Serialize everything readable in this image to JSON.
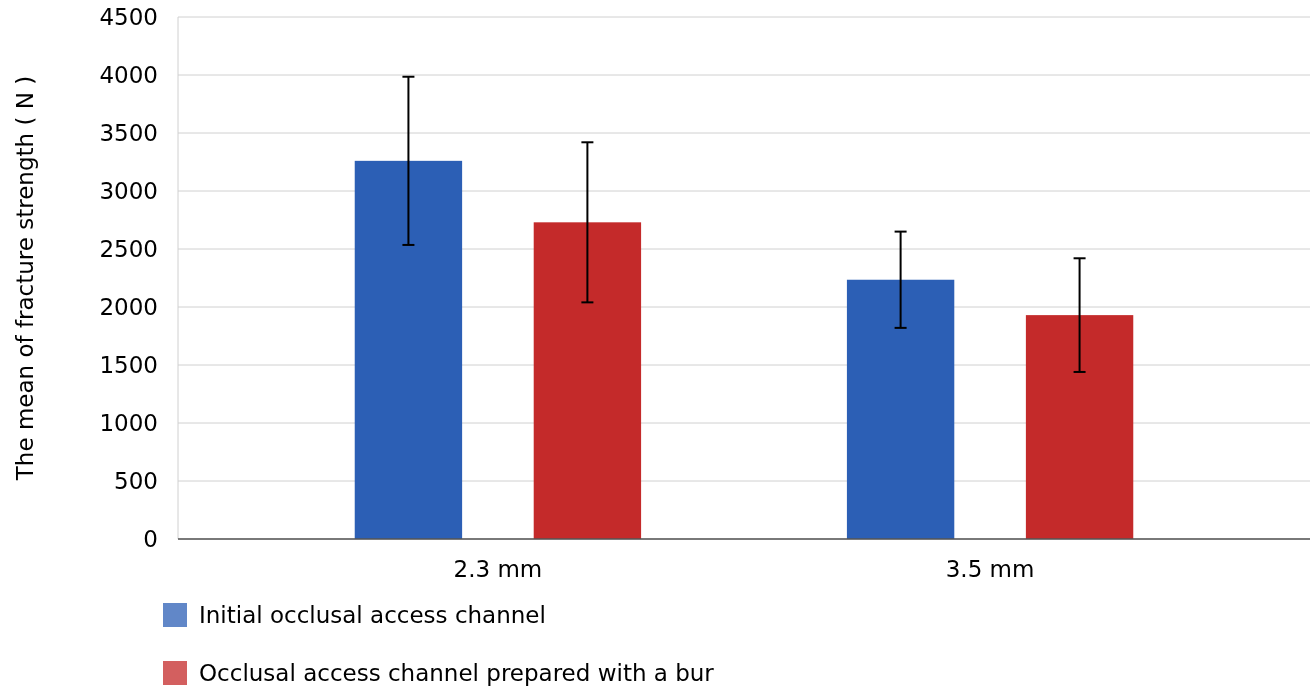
{
  "chart_data": {
    "type": "bar",
    "ylabel": "The mean of fracture strength ( N )",
    "categories": [
      "2.3 mm",
      "3.5 mm"
    ],
    "series": [
      {
        "name": "Initial occlusal access channel",
        "color": "#2c5fb5",
        "values": [
          3260,
          2235
        ],
        "errors": [
          725,
          415
        ]
      },
      {
        "name": "Occlusal access channel prepared with a bur",
        "color": "#c42a2a",
        "values": [
          2730,
          1930
        ],
        "errors": [
          690,
          490
        ]
      }
    ],
    "ylim": [
      0,
      4500
    ],
    "yticks": [
      0,
      500,
      1000,
      1500,
      2000,
      2500,
      3000,
      3500,
      4000,
      4500
    ],
    "grid": "y",
    "legend": "bottom left"
  }
}
